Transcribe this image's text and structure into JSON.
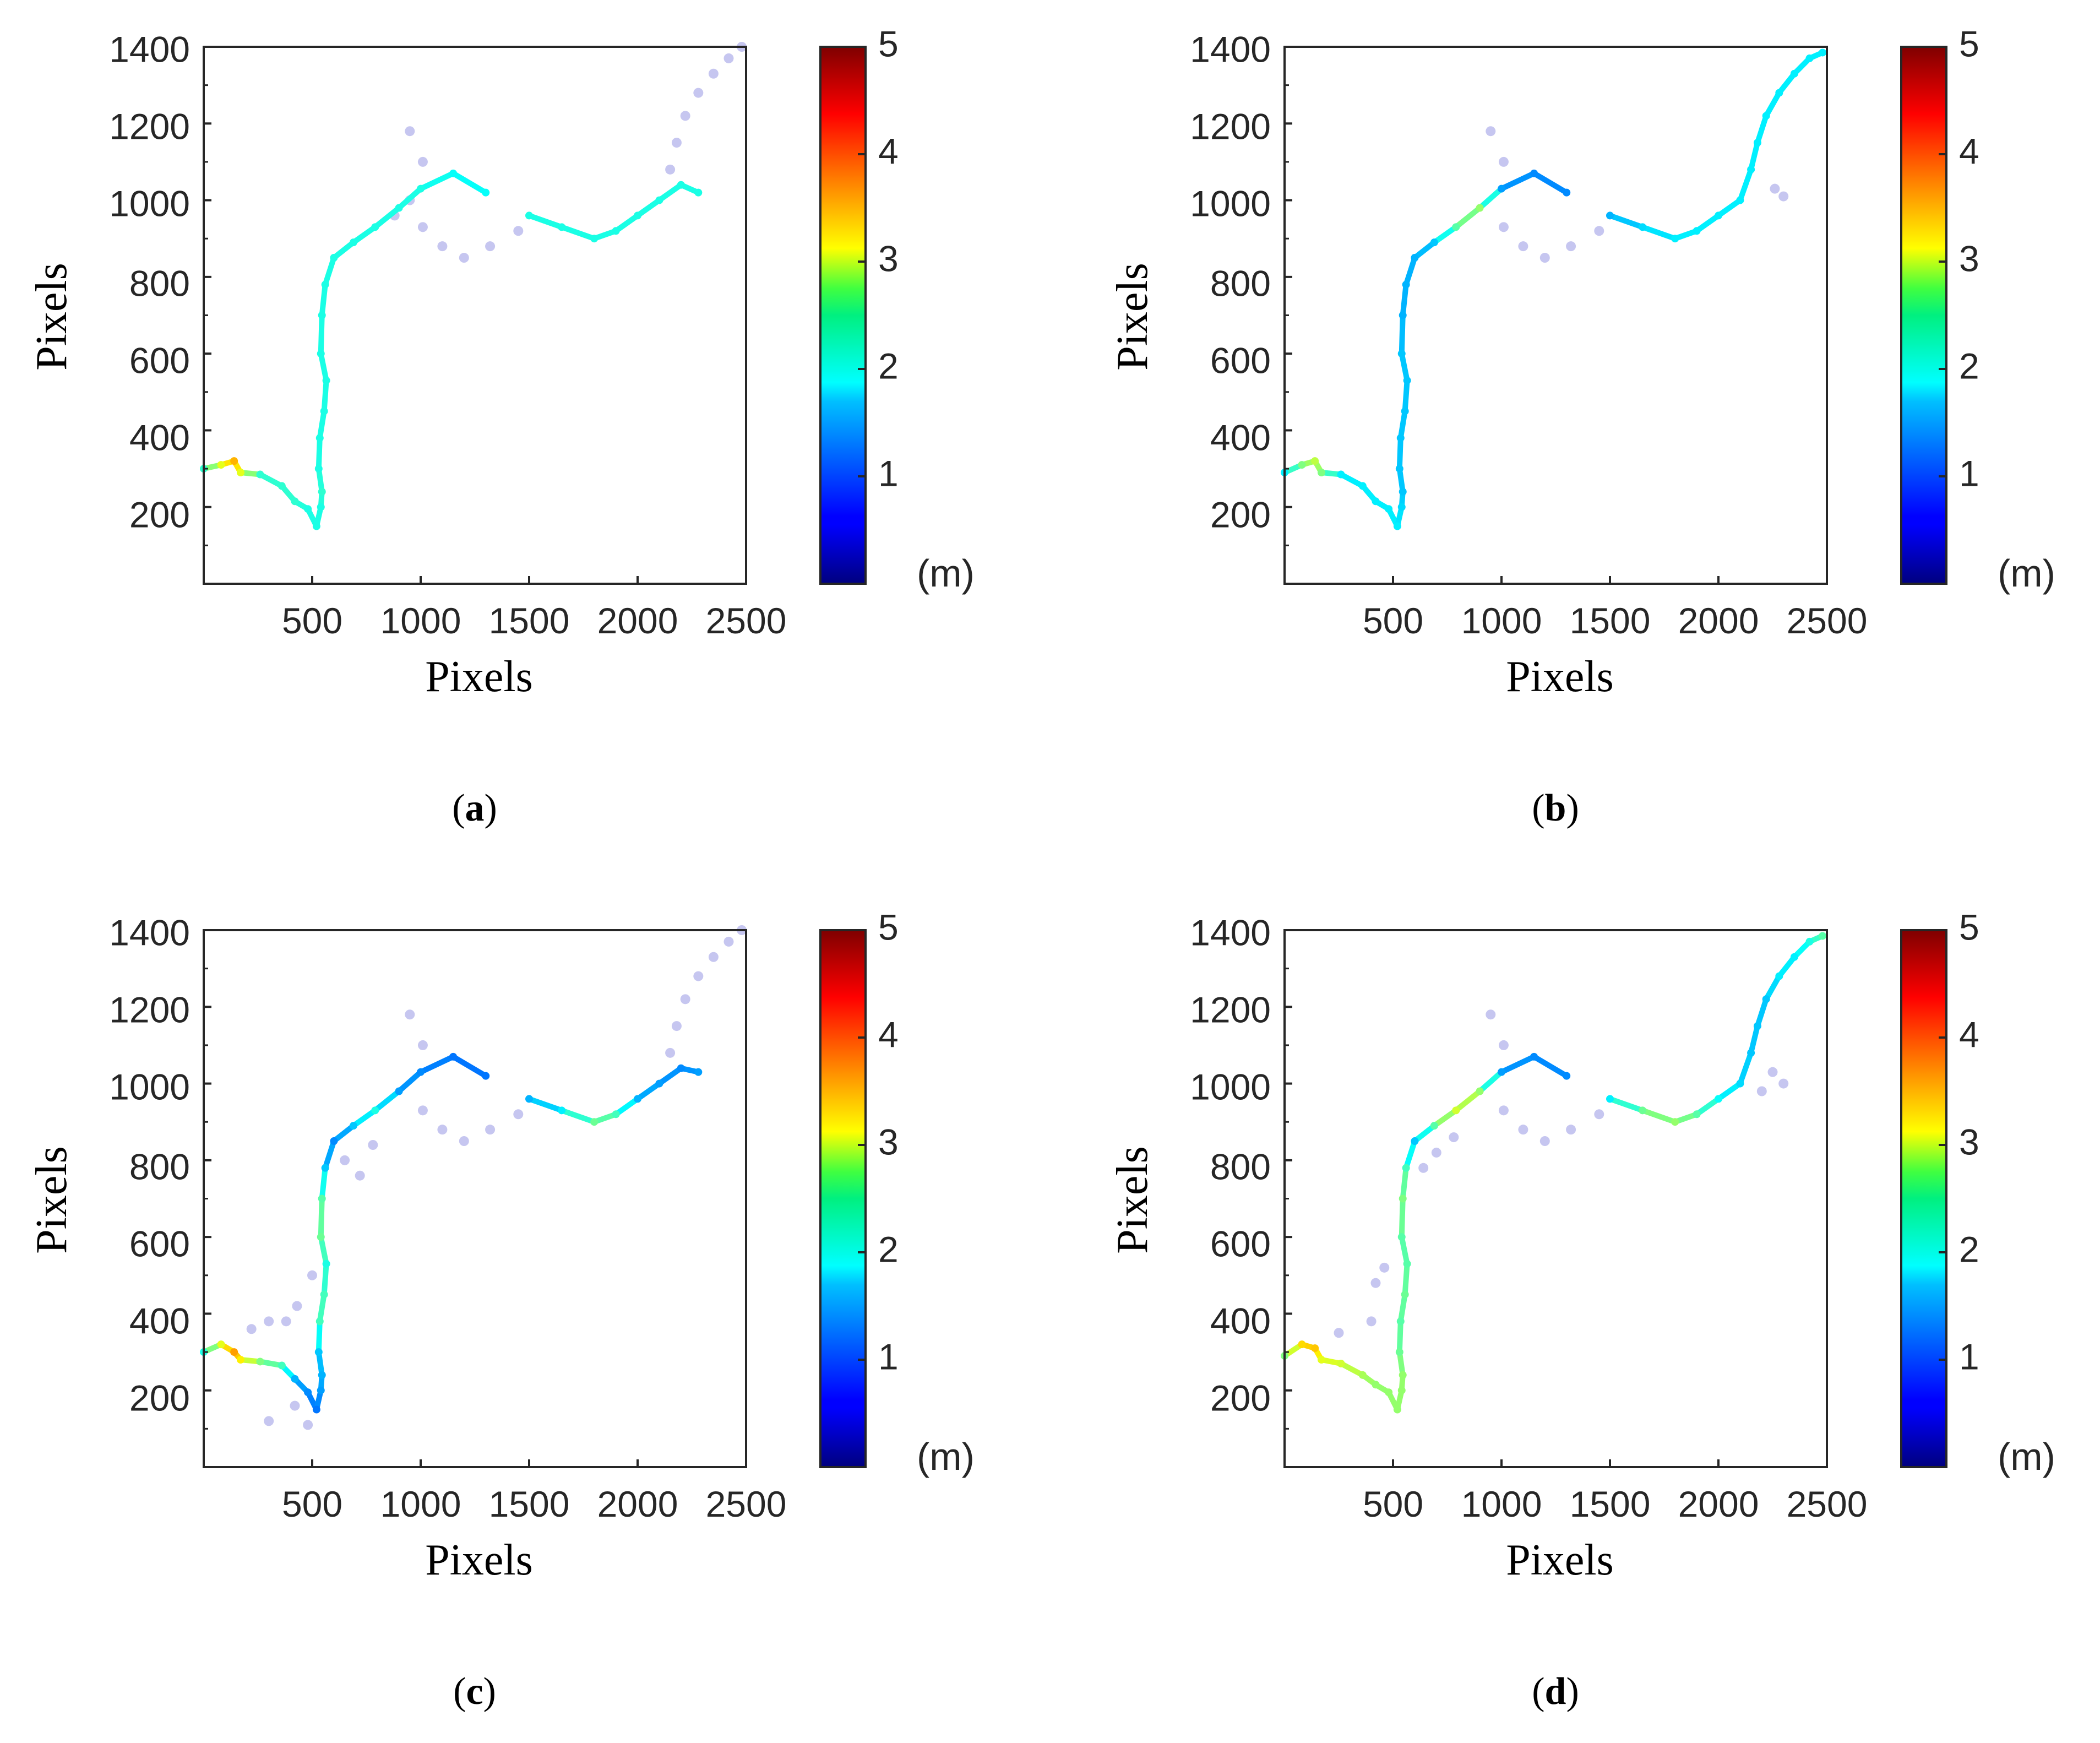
{
  "chart_data": [
    {
      "id": "a",
      "panel_label": "a",
      "type": "scatter",
      "xlabel": "Pixels",
      "ylabel": "Pixels",
      "xlim": [
        0,
        2500
      ],
      "ylim": [
        0,
        1400
      ],
      "xticks": [
        "500",
        "1000",
        "1500",
        "2000",
        "2500"
      ],
      "yticks": [
        "200",
        "400",
        "600",
        "800",
        "1000",
        "1200",
        "1400"
      ],
      "colorbar": {
        "label": "(m)",
        "range": [
          0,
          5
        ],
        "ticks": [
          "1",
          "2",
          "3",
          "4",
          "5"
        ]
      },
      "river_points": [
        [
          0,
          300,
          2.1
        ],
        [
          80,
          310,
          3.0
        ],
        [
          140,
          320,
          3.5
        ],
        [
          170,
          290,
          3.0
        ],
        [
          260,
          285,
          2.1
        ],
        [
          360,
          255,
          2.1
        ],
        [
          420,
          215,
          2.1
        ],
        [
          480,
          195,
          2.0
        ],
        [
          520,
          150,
          2.0
        ],
        [
          540,
          200,
          2.0
        ],
        [
          545,
          240,
          2.1
        ],
        [
          530,
          300,
          2.0
        ],
        [
          535,
          380,
          2.0
        ],
        [
          555,
          450,
          2.0
        ],
        [
          565,
          530,
          2.0
        ],
        [
          540,
          600,
          2.0
        ],
        [
          545,
          700,
          2.0
        ],
        [
          560,
          780,
          2.0
        ],
        [
          600,
          850,
          2.0
        ],
        [
          690,
          890,
          2.0
        ],
        [
          790,
          930,
          2.0
        ],
        [
          900,
          980,
          2.0
        ],
        [
          1000,
          1030,
          2.0
        ],
        [
          1150,
          1070,
          1.9
        ],
        [
          1300,
          1020,
          1.9
        ],
        [
          1500,
          960,
          2.0
        ],
        [
          1650,
          930,
          2.0
        ],
        [
          1800,
          900,
          2.0
        ],
        [
          1900,
          920,
          2.0
        ],
        [
          2000,
          960,
          2.0
        ],
        [
          2100,
          1000,
          2.0
        ],
        [
          2200,
          1040,
          2.0
        ],
        [
          2280,
          1020,
          2.0
        ]
      ],
      "faint_points": [
        [
          2150,
          1080,
          0.6
        ],
        [
          2180,
          1150,
          0.6
        ],
        [
          2220,
          1220,
          0.6
        ],
        [
          2280,
          1280,
          0.6
        ],
        [
          2350,
          1330,
          0.6
        ],
        [
          2420,
          1370,
          0.6
        ],
        [
          2480,
          1400,
          0.6
        ],
        [
          1010,
          930,
          0.6
        ],
        [
          1100,
          880,
          0.6
        ],
        [
          1200,
          850,
          0.6
        ],
        [
          1320,
          880,
          0.6
        ],
        [
          1450,
          920,
          0.6
        ],
        [
          950,
          1180,
          0.6
        ],
        [
          1010,
          1100,
          0.6
        ],
        [
          880,
          960,
          0.6
        ],
        [
          950,
          1000,
          0.6
        ]
      ]
    },
    {
      "id": "b",
      "panel_label": "b",
      "type": "scatter",
      "xlabel": "Pixels",
      "ylabel": "Pixels",
      "xlim": [
        0,
        2500
      ],
      "ylim": [
        0,
        1400
      ],
      "xticks": [
        "500",
        "1000",
        "1500",
        "2000",
        "2500"
      ],
      "yticks": [
        "200",
        "400",
        "600",
        "800",
        "1000",
        "1200",
        "1400"
      ],
      "colorbar": {
        "label": "(m)",
        "range": [
          0,
          5
        ],
        "ticks": [
          "1",
          "2",
          "3",
          "4",
          "5"
        ]
      },
      "river_points": [
        [
          0,
          290,
          1.8
        ],
        [
          80,
          310,
          2.5
        ],
        [
          140,
          320,
          2.8
        ],
        [
          170,
          290,
          2.5
        ],
        [
          260,
          285,
          1.8
        ],
        [
          360,
          255,
          1.8
        ],
        [
          420,
          215,
          1.8
        ],
        [
          480,
          195,
          1.8
        ],
        [
          520,
          150,
          1.8
        ],
        [
          540,
          200,
          1.7
        ],
        [
          545,
          240,
          1.6
        ],
        [
          530,
          300,
          1.6
        ],
        [
          535,
          380,
          1.6
        ],
        [
          555,
          450,
          1.6
        ],
        [
          565,
          530,
          1.6
        ],
        [
          540,
          600,
          1.6
        ],
        [
          545,
          700,
          1.5
        ],
        [
          560,
          780,
          1.5
        ],
        [
          600,
          850,
          1.5
        ],
        [
          690,
          890,
          1.6
        ],
        [
          790,
          930,
          2.3
        ],
        [
          900,
          980,
          2.6
        ],
        [
          1000,
          1030,
          1.4
        ],
        [
          1150,
          1070,
          1.3
        ],
        [
          1300,
          1020,
          1.3
        ],
        [
          1500,
          960,
          1.5
        ],
        [
          1650,
          930,
          1.7
        ],
        [
          1800,
          900,
          1.8
        ],
        [
          1900,
          920,
          1.8
        ],
        [
          2000,
          960,
          1.8
        ],
        [
          2100,
          1000,
          1.8
        ],
        [
          2150,
          1080,
          1.8
        ],
        [
          2180,
          1150,
          1.8
        ],
        [
          2220,
          1220,
          1.8
        ],
        [
          2280,
          1280,
          1.8
        ],
        [
          2350,
          1330,
          1.8
        ],
        [
          2420,
          1370,
          1.8
        ],
        [
          2480,
          1385,
          1.8
        ]
      ],
      "faint_points": [
        [
          1010,
          930,
          0.6
        ],
        [
          1100,
          880,
          0.6
        ],
        [
          1200,
          850,
          0.6
        ],
        [
          1320,
          880,
          0.6
        ],
        [
          1450,
          920,
          0.6
        ],
        [
          950,
          1180,
          0.6
        ],
        [
          1010,
          1100,
          0.6
        ],
        [
          2260,
          1030,
          0.6
        ],
        [
          2300,
          1010,
          0.6
        ]
      ]
    },
    {
      "id": "c",
      "panel_label": "c",
      "type": "scatter",
      "xlabel": "Pixels",
      "ylabel": "Pixels",
      "xlim": [
        0,
        2500
      ],
      "ylim": [
        0,
        1400
      ],
      "xticks": [
        "500",
        "1000",
        "1500",
        "2000",
        "2500"
      ],
      "yticks": [
        "200",
        "400",
        "600",
        "800",
        "1000",
        "1200",
        "1400"
      ],
      "colorbar": {
        "label": "(m)",
        "range": [
          0,
          5
        ],
        "ticks": [
          "1",
          "2",
          "3",
          "4",
          "5"
        ]
      },
      "river_points": [
        [
          0,
          300,
          2.0
        ],
        [
          80,
          320,
          3.0
        ],
        [
          140,
          300,
          3.6
        ],
        [
          170,
          280,
          3.2
        ],
        [
          260,
          275,
          2.5
        ],
        [
          360,
          265,
          2.2
        ],
        [
          420,
          230,
          1.5
        ],
        [
          480,
          195,
          1.3
        ],
        [
          520,
          150,
          1.2
        ],
        [
          540,
          200,
          1.4
        ],
        [
          545,
          240,
          1.5
        ],
        [
          530,
          300,
          1.6
        ],
        [
          535,
          380,
          2.2
        ],
        [
          555,
          450,
          2.2
        ],
        [
          565,
          530,
          2.0
        ],
        [
          540,
          600,
          2.4
        ],
        [
          545,
          700,
          2.3
        ],
        [
          560,
          780,
          1.6
        ],
        [
          600,
          850,
          1.3
        ],
        [
          690,
          890,
          1.6
        ],
        [
          790,
          930,
          2.0
        ],
        [
          900,
          980,
          1.4
        ],
        [
          1000,
          1030,
          1.3
        ],
        [
          1150,
          1070,
          1.2
        ],
        [
          1300,
          1020,
          1.2
        ],
        [
          1500,
          960,
          1.5
        ],
        [
          1650,
          930,
          1.8
        ],
        [
          1800,
          900,
          2.4
        ],
        [
          1900,
          920,
          2.2
        ],
        [
          2000,
          960,
          1.5
        ],
        [
          2100,
          1000,
          1.4
        ],
        [
          2200,
          1040,
          1.3
        ],
        [
          2280,
          1030,
          1.4
        ]
      ],
      "faint_points": [
        [
          2150,
          1080,
          0.6
        ],
        [
          2180,
          1150,
          0.6
        ],
        [
          2220,
          1220,
          0.6
        ],
        [
          2280,
          1280,
          0.6
        ],
        [
          2350,
          1330,
          0.6
        ],
        [
          2420,
          1370,
          0.6
        ],
        [
          2480,
          1400,
          0.6
        ],
        [
          1010,
          930,
          0.6
        ],
        [
          1100,
          880,
          0.6
        ],
        [
          1200,
          850,
          0.6
        ],
        [
          1320,
          880,
          0.6
        ],
        [
          1450,
          920,
          0.6
        ],
        [
          950,
          1180,
          0.6
        ],
        [
          1010,
          1100,
          0.6
        ],
        [
          650,
          800,
          0.6
        ],
        [
          720,
          760,
          0.6
        ],
        [
          780,
          840,
          0.6
        ],
        [
          500,
          500,
          0.6
        ],
        [
          430,
          420,
          0.6
        ],
        [
          380,
          380,
          0.6
        ],
        [
          300,
          380,
          0.6
        ],
        [
          220,
          360,
          0.6
        ],
        [
          420,
          160,
          0.6
        ],
        [
          480,
          110,
          0.6
        ],
        [
          300,
          120,
          0.6
        ]
      ]
    },
    {
      "id": "d",
      "panel_label": "d",
      "type": "scatter",
      "xlabel": "Pixels",
      "ylabel": "Pixels",
      "xlim": [
        0,
        2500
      ],
      "ylim": [
        0,
        1400
      ],
      "xticks": [
        "500",
        "1000",
        "1500",
        "2000",
        "2500"
      ],
      "yticks": [
        "200",
        "400",
        "600",
        "800",
        "1000",
        "1200",
        "1400"
      ],
      "colorbar": {
        "label": "(m)",
        "range": [
          0,
          5
        ],
        "ticks": [
          "1",
          "2",
          "3",
          "4",
          "5"
        ]
      },
      "river_points": [
        [
          0,
          290,
          2.5
        ],
        [
          80,
          320,
          3.3
        ],
        [
          140,
          310,
          3.4
        ],
        [
          170,
          280,
          3.0
        ],
        [
          260,
          270,
          2.9
        ],
        [
          360,
          240,
          2.7
        ],
        [
          420,
          215,
          2.6
        ],
        [
          480,
          195,
          2.6
        ],
        [
          520,
          150,
          2.6
        ],
        [
          540,
          200,
          2.6
        ],
        [
          545,
          240,
          2.6
        ],
        [
          530,
          300,
          2.4
        ],
        [
          535,
          380,
          2.3
        ],
        [
          555,
          450,
          2.4
        ],
        [
          565,
          530,
          2.3
        ],
        [
          540,
          600,
          2.3
        ],
        [
          545,
          700,
          2.5
        ],
        [
          560,
          780,
          2.2
        ],
        [
          600,
          850,
          1.6
        ],
        [
          690,
          890,
          2.3
        ],
        [
          790,
          930,
          2.9
        ],
        [
          900,
          980,
          2.6
        ],
        [
          1000,
          1030,
          1.4
        ],
        [
          1150,
          1070,
          1.3
        ],
        [
          1300,
          1020,
          1.3
        ],
        [
          1500,
          960,
          1.8
        ],
        [
          1650,
          930,
          2.4
        ],
        [
          1800,
          900,
          2.6
        ],
        [
          1900,
          920,
          2.3
        ],
        [
          2000,
          960,
          1.9
        ],
        [
          2100,
          1000,
          1.7
        ],
        [
          2150,
          1080,
          1.6
        ],
        [
          2180,
          1150,
          1.6
        ],
        [
          2220,
          1220,
          1.6
        ],
        [
          2280,
          1280,
          1.8
        ],
        [
          2350,
          1330,
          1.8
        ],
        [
          2420,
          1370,
          2.0
        ],
        [
          2480,
          1385,
          2.3
        ]
      ],
      "faint_points": [
        [
          1010,
          930,
          0.6
        ],
        [
          1100,
          880,
          0.6
        ],
        [
          1200,
          850,
          0.6
        ],
        [
          1320,
          880,
          0.6
        ],
        [
          1450,
          920,
          0.6
        ],
        [
          950,
          1180,
          0.6
        ],
        [
          1010,
          1100,
          0.6
        ],
        [
          640,
          780,
          0.7
        ],
        [
          700,
          820,
          0.8
        ],
        [
          780,
          860,
          0.8
        ],
        [
          420,
          480,
          0.6
        ],
        [
          460,
          520,
          0.6
        ],
        [
          400,
          380,
          0.6
        ],
        [
          250,
          350,
          0.6
        ],
        [
          2250,
          1030,
          0.6
        ],
        [
          2300,
          1000,
          0.6
        ],
        [
          2200,
          980,
          0.6
        ]
      ]
    }
  ]
}
